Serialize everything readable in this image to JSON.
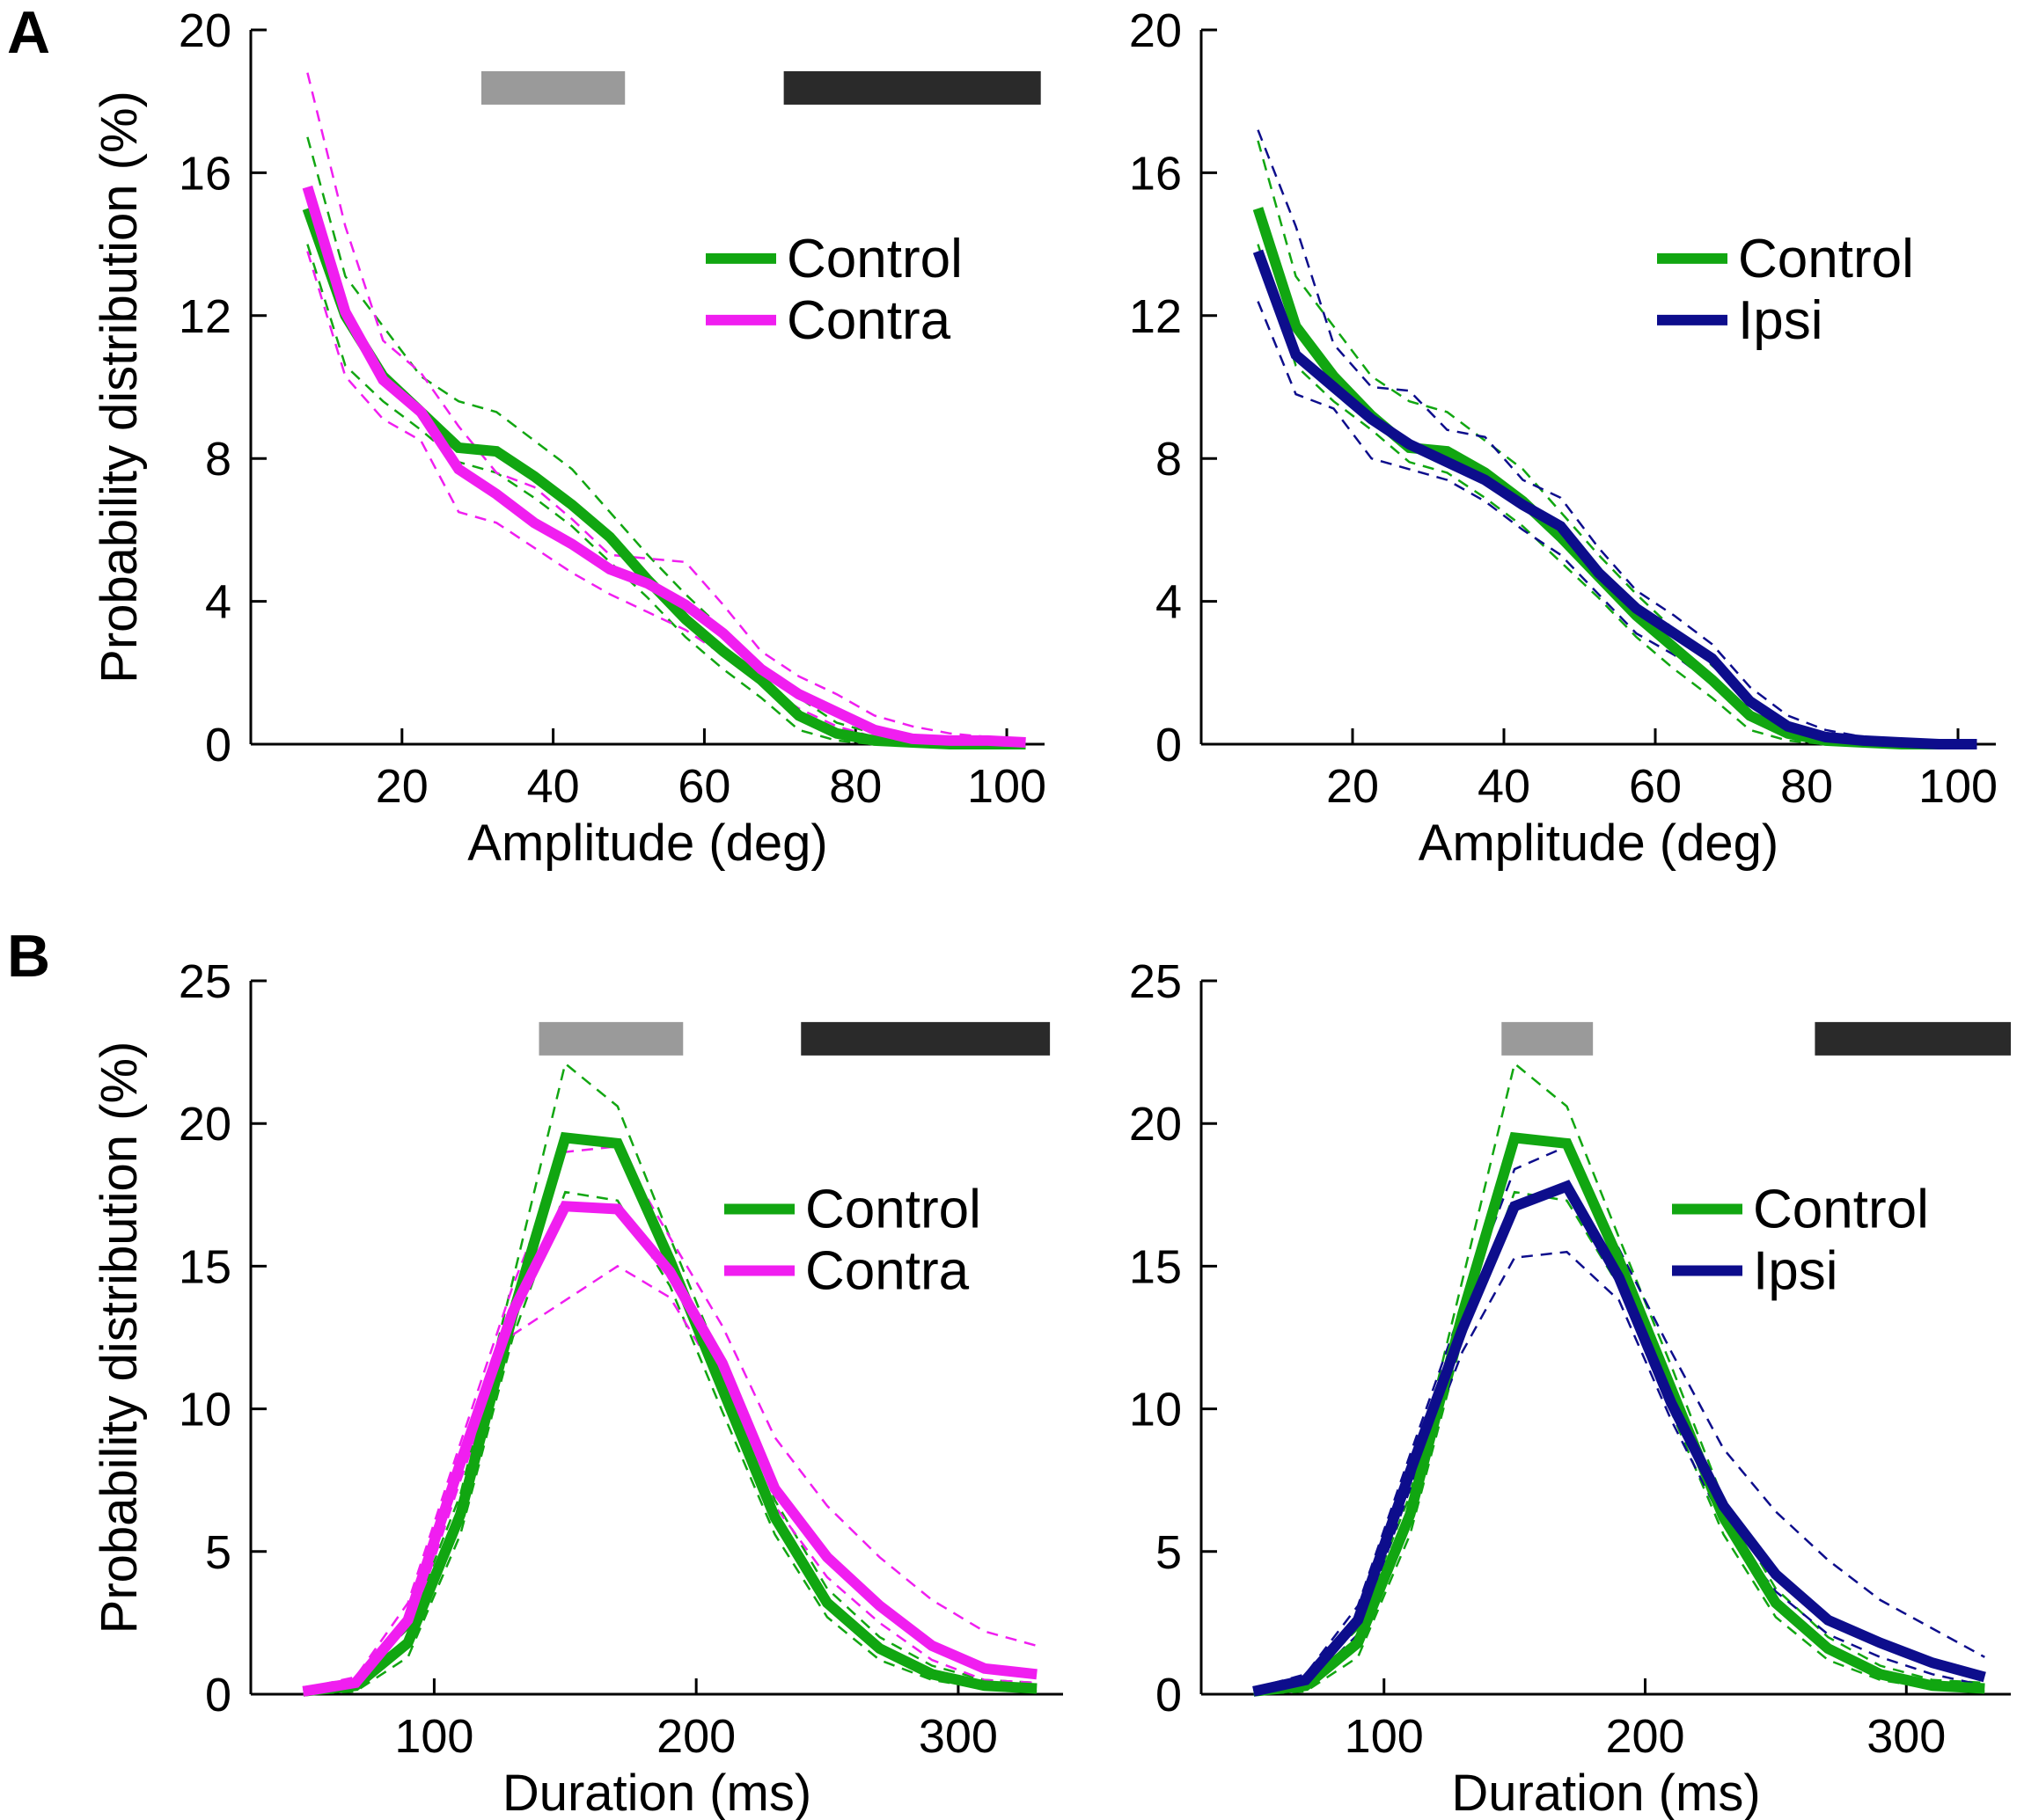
{
  "panel_labels": {
    "a": "A",
    "b": "B"
  },
  "colors": {
    "control": "#11a611",
    "contra": "#f01ef0",
    "ipsi": "#0d0d8c",
    "gray_bar": "#9a9a9a",
    "black_bar": "#2a2a2a",
    "axis": "#000000"
  },
  "chart_data": [
    {
      "id": "amp-contra",
      "type": "line",
      "xlabel": "Amplitude (deg)",
      "ylabel": "Probability distribution (%)",
      "xlim": [
        0,
        105
      ],
      "ylim": [
        0,
        20
      ],
      "xticks": [
        20,
        40,
        60,
        80,
        100
      ],
      "yticks": [
        0,
        4,
        8,
        12,
        16,
        20
      ],
      "x": [
        7.5,
        12.5,
        17.5,
        22.5,
        27.5,
        32.5,
        37.5,
        42.5,
        47.5,
        52.5,
        57.5,
        62.5,
        67.5,
        72.5,
        77.5,
        82.5,
        87.5,
        92.5,
        97.5,
        102.5
      ],
      "series": [
        {
          "name": "Control",
          "role": "control",
          "values": [
            15.0,
            12.0,
            10.3,
            9.3,
            8.3,
            8.2,
            7.5,
            6.7,
            5.8,
            4.6,
            3.5,
            2.6,
            1.8,
            0.8,
            0.3,
            0.1,
            0.05,
            0.0,
            0.0,
            0.0
          ],
          "lower": [
            14.0,
            10.6,
            9.6,
            8.8,
            7.9,
            7.6,
            6.9,
            6.1,
            5.1,
            4.1,
            3.0,
            2.1,
            1.3,
            0.4,
            0.1,
            0.0,
            0.0,
            0.0,
            0.0,
            0.0
          ],
          "upper": [
            17.0,
            13.1,
            11.7,
            10.3,
            9.6,
            9.3,
            8.5,
            7.7,
            6.5,
            5.3,
            4.2,
            3.2,
            2.2,
            1.3,
            0.6,
            0.3,
            0.1,
            0.0,
            0.0,
            0.0
          ]
        },
        {
          "name": "Contra",
          "role": "contra",
          "values": [
            15.6,
            12.1,
            10.2,
            9.3,
            7.7,
            7.0,
            6.2,
            5.6,
            4.9,
            4.5,
            3.9,
            3.1,
            2.1,
            1.4,
            0.9,
            0.4,
            0.15,
            0.1,
            0.1,
            0.05
          ],
          "lower": [
            13.8,
            10.3,
            9.1,
            8.5,
            6.5,
            6.2,
            5.5,
            4.8,
            4.2,
            3.7,
            3.2,
            2.5,
            1.7,
            1.0,
            0.5,
            0.2,
            0.05,
            0.0,
            0.0,
            0.0
          ],
          "upper": [
            18.8,
            14.5,
            11.3,
            10.4,
            8.9,
            7.6,
            7.2,
            6.3,
            5.3,
            5.2,
            5.1,
            3.9,
            2.6,
            1.9,
            1.4,
            0.8,
            0.5,
            0.3,
            0.2,
            0.1
          ]
        }
      ],
      "bars": [
        {
          "color": "gray",
          "from": 30.5,
          "to": 49.5
        },
        {
          "color": "black",
          "from": 70.5,
          "to": 104.5
        }
      ],
      "legend": [
        {
          "label": "Control",
          "role": "control"
        },
        {
          "label": "Contra",
          "role": "contra"
        }
      ]
    },
    {
      "id": "amp-ipsi",
      "type": "line",
      "xlabel": "Amplitude (deg)",
      "ylabel": "",
      "xlim": [
        0,
        105
      ],
      "ylim": [
        0,
        20
      ],
      "xticks": [
        20,
        40,
        60,
        80,
        100
      ],
      "yticks": [
        0,
        4,
        8,
        12,
        16,
        20
      ],
      "x": [
        7.5,
        12.5,
        17.5,
        22.5,
        27.5,
        32.5,
        37.5,
        42.5,
        47.5,
        52.5,
        57.5,
        62.5,
        67.5,
        72.5,
        77.5,
        82.5,
        87.5,
        92.5,
        97.5,
        102.5
      ],
      "series": [
        {
          "name": "Control",
          "role": "control",
          "values": [
            15.0,
            11.7,
            10.3,
            9.2,
            8.3,
            8.2,
            7.6,
            6.8,
            5.8,
            4.7,
            3.6,
            2.7,
            1.8,
            0.8,
            0.3,
            0.1,
            0.05,
            0.0,
            0.0,
            0.0
          ],
          "lower": [
            14.0,
            10.6,
            9.6,
            8.8,
            7.9,
            7.6,
            6.9,
            6.1,
            5.1,
            4.1,
            3.0,
            2.1,
            1.3,
            0.4,
            0.1,
            0.0,
            0.0,
            0.0,
            0.0,
            0.0
          ],
          "upper": [
            16.9,
            13.1,
            11.7,
            10.3,
            9.6,
            9.3,
            8.5,
            7.7,
            6.5,
            5.3,
            4.2,
            3.2,
            2.2,
            1.3,
            0.6,
            0.3,
            0.1,
            0.0,
            0.0,
            0.0
          ]
        },
        {
          "name": "Ipsi",
          "role": "ipsi",
          "values": [
            13.8,
            10.9,
            10.0,
            9.1,
            8.4,
            7.9,
            7.4,
            6.7,
            6.1,
            4.8,
            3.8,
            3.1,
            2.4,
            1.2,
            0.5,
            0.2,
            0.1,
            0.05,
            0.0,
            0.0
          ],
          "lower": [
            12.4,
            9.8,
            9.4,
            8.0,
            7.7,
            7.4,
            6.8,
            6.0,
            5.3,
            4.2,
            3.1,
            2.5,
            1.7,
            0.8,
            0.3,
            0.1,
            0.0,
            0.0,
            0.0,
            0.0
          ],
          "upper": [
            17.2,
            14.5,
            11.2,
            10.0,
            9.9,
            8.8,
            8.6,
            7.4,
            6.9,
            5.5,
            4.3,
            3.6,
            2.8,
            1.6,
            0.8,
            0.4,
            0.2,
            0.1,
            0.0,
            0.0
          ]
        }
      ],
      "bars": [],
      "legend": [
        {
          "label": "Control",
          "role": "control"
        },
        {
          "label": "Ipsi",
          "role": "ipsi"
        }
      ]
    },
    {
      "id": "dur-contra",
      "type": "line",
      "xlabel": "Duration (ms)",
      "ylabel": "Probability distribution (%)",
      "xlim": [
        30,
        340
      ],
      "ylim": [
        0,
        25
      ],
      "xticks": [
        100,
        200,
        300
      ],
      "yticks": [
        0,
        5,
        10,
        15,
        20,
        25
      ],
      "x": [
        50,
        70,
        90,
        110,
        130,
        150,
        170,
        190,
        210,
        230,
        250,
        270,
        290,
        310,
        330
      ],
      "series": [
        {
          "name": "Control",
          "role": "control",
          "values": [
            0.1,
            0.3,
            1.8,
            6.3,
            13.3,
            19.5,
            19.3,
            15.2,
            10.7,
            6.2,
            3.2,
            1.6,
            0.7,
            0.3,
            0.2
          ],
          "lower": [
            0.0,
            0.1,
            1.3,
            5.6,
            12.5,
            17.6,
            17.3,
            14.3,
            9.9,
            5.6,
            2.7,
            1.2,
            0.5,
            0.2,
            0.1
          ],
          "upper": [
            0.2,
            0.5,
            2.3,
            7.0,
            14.5,
            22.1,
            20.6,
            16.0,
            11.5,
            6.8,
            3.7,
            2.0,
            1.0,
            0.5,
            0.4
          ]
        },
        {
          "name": "Contra",
          "role": "contra",
          "values": [
            0.1,
            0.4,
            2.6,
            8.1,
            13.4,
            17.1,
            17.0,
            14.8,
            11.6,
            7.2,
            4.8,
            3.1,
            1.7,
            0.9,
            0.7
          ],
          "lower": [
            0.0,
            0.2,
            2.0,
            7.5,
            12.6,
            13.8,
            15.0,
            13.9,
            10.9,
            6.6,
            4.1,
            2.5,
            1.2,
            0.5,
            0.4
          ],
          "upper": [
            0.2,
            0.6,
            3.2,
            8.8,
            14.3,
            19.0,
            19.2,
            16.0,
            12.9,
            9.0,
            6.6,
            4.8,
            3.3,
            2.2,
            1.7
          ]
        }
      ],
      "bars": [
        {
          "color": "gray",
          "from": 140,
          "to": 195
        },
        {
          "color": "black",
          "from": 240,
          "to": 335
        }
      ],
      "legend": [
        {
          "label": "Control",
          "role": "control"
        },
        {
          "label": "Contra",
          "role": "contra"
        }
      ]
    },
    {
      "id": "dur-ipsi",
      "type": "line",
      "xlabel": "Duration (ms)",
      "ylabel": "",
      "xlim": [
        30,
        340
      ],
      "ylim": [
        0,
        25
      ],
      "xticks": [
        100,
        200,
        300
      ],
      "yticks": [
        0,
        5,
        10,
        15,
        20,
        25
      ],
      "x": [
        50,
        70,
        90,
        110,
        130,
        150,
        170,
        190,
        210,
        230,
        250,
        270,
        290,
        310,
        330
      ],
      "series": [
        {
          "name": "Control",
          "role": "control",
          "values": [
            0.1,
            0.3,
            1.8,
            6.3,
            13.3,
            19.5,
            19.3,
            15.2,
            10.7,
            6.2,
            3.2,
            1.6,
            0.7,
            0.3,
            0.2
          ],
          "lower": [
            0.0,
            0.1,
            1.3,
            5.6,
            12.5,
            17.6,
            17.3,
            14.3,
            9.9,
            5.6,
            2.7,
            1.2,
            0.5,
            0.2,
            0.1
          ],
          "upper": [
            0.2,
            0.5,
            2.3,
            7.0,
            14.5,
            22.1,
            20.6,
            16.0,
            11.5,
            6.8,
            3.7,
            2.0,
            1.0,
            0.5,
            0.4
          ]
        },
        {
          "name": "Ipsi",
          "role": "ipsi",
          "values": [
            0.1,
            0.5,
            2.6,
            7.8,
            12.8,
            17.1,
            17.8,
            14.6,
            10.2,
            6.6,
            4.2,
            2.6,
            1.8,
            1.1,
            0.6
          ],
          "lower": [
            0.0,
            0.3,
            2.1,
            7.2,
            12.0,
            15.3,
            15.5,
            13.8,
            9.6,
            6.0,
            3.6,
            2.1,
            1.3,
            0.7,
            0.3
          ],
          "upper": [
            0.2,
            0.7,
            3.1,
            8.4,
            13.6,
            18.4,
            19.2,
            15.6,
            12.0,
            8.6,
            6.4,
            4.7,
            3.3,
            2.3,
            1.3
          ]
        }
      ],
      "bars": [
        {
          "color": "gray",
          "from": 145,
          "to": 180
        },
        {
          "color": "black",
          "from": 265,
          "to": 340
        }
      ],
      "legend": [
        {
          "label": "Control",
          "role": "control"
        },
        {
          "label": "Ipsi",
          "role": "ipsi"
        }
      ]
    }
  ]
}
